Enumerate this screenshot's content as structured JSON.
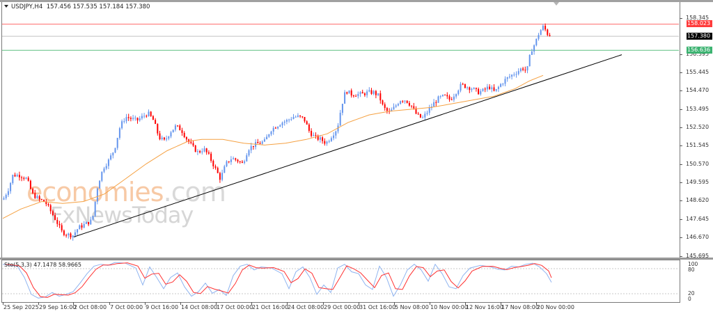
{
  "chart_window": {
    "symbol": "USDJPY",
    "timeframe": "H4",
    "title": "USDJPY,H4",
    "ohlc": "157.456 157.535 157.184 157.380",
    "colors": {
      "bull_candle": "#6495ed",
      "bear_candle": "#ff0000",
      "resistance_line": "#ff6666",
      "support_line": "#5fbf80",
      "bid_line": "#c0c0c0",
      "moving_average": "#f5a142",
      "trendline": "#000000"
    }
  },
  "price_axis": {
    "ticks": [
      "158.345",
      "156.395",
      "155.445",
      "154.470",
      "153.495",
      "152.520",
      "151.545",
      "150.570",
      "149.595",
      "148.620",
      "147.645",
      "146.670",
      "145.695"
    ],
    "labels": {
      "resistance": "158.023",
      "current": "157.380",
      "support": "156.636"
    }
  },
  "stochastic": {
    "label": "Sto(5,3,3) 47.1478 58.9665",
    "main_value": "47.1478",
    "signal_value": "58.9665",
    "levels": [
      "100",
      "80",
      "20",
      "0"
    ]
  },
  "time_axis": {
    "ticks": [
      "25 Sep 2025",
      "29 Sep 16:00",
      "2 Oct 08:00",
      "7 Oct 00:00",
      "9 Oct 16:00",
      "14 Oct 08:00",
      "17 Oct 00:00",
      "21 Oct 16:00",
      "24 Oct 08:00",
      "29 Oct 00:00",
      "31 Oct 16:00",
      "5 Nov 08:00",
      "10 Nov 00:00",
      "12 Nov 16:00",
      "17 Nov 08:00",
      "20 Nov 00:00"
    ]
  },
  "watermark": {
    "line1_main": "economies",
    "line1_suffix": ".com",
    "line2": "FxNewsToday"
  },
  "chart_data": {
    "type": "candlestick",
    "title": "USDJPY,H4",
    "xlabel": "",
    "ylabel": "",
    "ylim": [
      145.695,
      158.6
    ],
    "x": [
      "25 Sep 2025",
      "29 Sep 16:00",
      "2 Oct 08:00",
      "7 Oct 00:00",
      "9 Oct 16:00",
      "14 Oct 08:00",
      "17 Oct 00:00",
      "21 Oct 16:00",
      "24 Oct 08:00",
      "29 Oct 00:00",
      "31 Oct 16:00",
      "5 Nov 08:00",
      "10 Nov 00:00",
      "12 Nov 16:00",
      "17 Nov 08:00",
      "20 Nov 00:00"
    ],
    "series": [
      {
        "name": "Close (approx at tick)",
        "values": [
          148.6,
          148.9,
          147.3,
          149.9,
          153.0,
          152.0,
          150.1,
          151.9,
          153.0,
          152.3,
          154.5,
          153.3,
          154.0,
          154.5,
          155.0,
          158.0
        ]
      },
      {
        "name": "MA (approx)",
        "values": [
          147.7,
          148.3,
          148.6,
          149.2,
          150.6,
          151.7,
          151.9,
          151.6,
          151.8,
          152.6,
          153.3,
          153.5,
          153.9,
          154.1,
          154.5,
          155.4
        ]
      }
    ],
    "horizontal_lines": [
      {
        "name": "resistance",
        "value": 158.023
      },
      {
        "name": "current",
        "value": 157.38
      },
      {
        "name": "support",
        "value": 156.636
      }
    ],
    "trendline": {
      "from": {
        "x": "1 Oct 2025",
        "y": 146.8
      },
      "to": {
        "x": "21 Nov 2025",
        "y": 156.4
      }
    },
    "indicator": {
      "name": "Sto(5,3,3)",
      "main": 47.1478,
      "signal": 58.9665,
      "levels": [
        20,
        80
      ],
      "range": [
        0,
        100
      ]
    }
  }
}
